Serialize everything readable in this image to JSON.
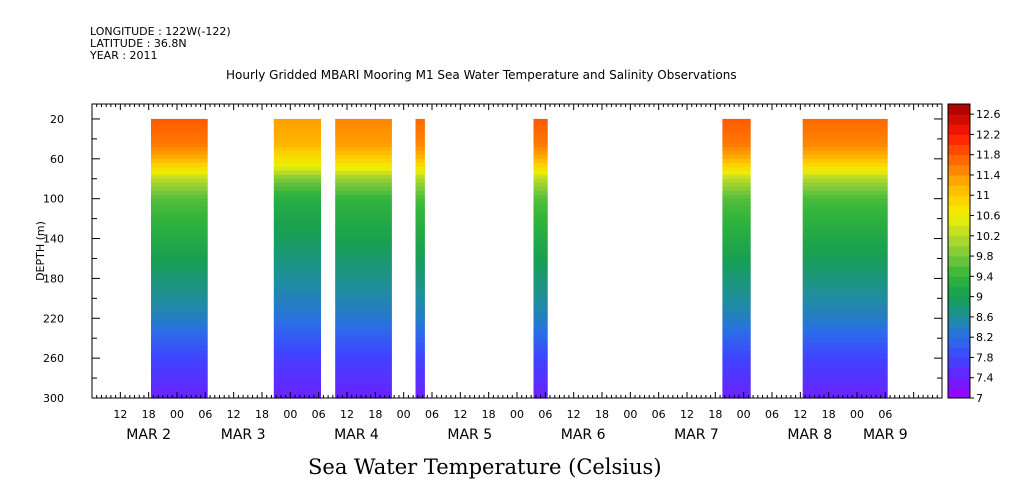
{
  "header": {
    "longitude": "LONGITUDE : 122W(-122)",
    "latitude": "LATITUDE : 36.8N",
    "year": "YEAR : 2011"
  },
  "title": "Hourly Gridded MBARI Mooring M1 Sea Water Temperature and Salinity Observations",
  "bottom_title": "Sea Water Temperature (Celsius)",
  "chart_data": {
    "type": "heatmap",
    "title": "Hourly Gridded MBARI Mooring M1 Sea Water Temperature and Salinity Observations",
    "xlabel": "",
    "ylabel": "DEPTH (m)",
    "xlim_hours": [
      0,
      180
    ],
    "ylim": [
      300,
      5
    ],
    "y_ticks": [
      20,
      60,
      100,
      140,
      180,
      220,
      260,
      300
    ],
    "y_tick_labels": [
      "20",
      "60",
      "100",
      "140",
      "180",
      "220",
      "260",
      "300"
    ],
    "x_hour_labels": [
      "12",
      "18",
      "00",
      "06",
      "12",
      "18",
      "00",
      "06",
      "12",
      "18",
      "00",
      "06",
      "12",
      "18",
      "00",
      "06",
      "12",
      "18",
      "00",
      "06",
      "12",
      "18",
      "00",
      "06",
      "12",
      "18",
      "00",
      "06"
    ],
    "x_hour_label_positions": [
      6,
      12,
      18,
      24,
      30,
      36,
      42,
      48,
      54,
      60,
      66,
      72,
      78,
      84,
      90,
      96,
      102,
      108,
      114,
      120,
      126,
      132,
      138,
      144,
      150,
      156,
      162,
      168
    ],
    "x_date_labels": [
      {
        "text": "MAR  2",
        "hour": 12
      },
      {
        "text": "MAR  3",
        "hour": 32
      },
      {
        "text": "MAR  4",
        "hour": 56
      },
      {
        "text": "MAR  5",
        "hour": 80
      },
      {
        "text": "MAR  6",
        "hour": 104
      },
      {
        "text": "MAR  7",
        "hour": 128
      },
      {
        "text": "MAR  8",
        "hour": 152
      },
      {
        "text": "MAR  9",
        "hour": 168
      }
    ],
    "colorbar": {
      "min": 7,
      "max": 12.8,
      "step": 0.2,
      "labels": [
        "12.6",
        "12.2",
        "11.8",
        "11.4",
        "11",
        "10.6",
        "10.2",
        "9.8",
        "9.4",
        "9",
        "8.6",
        "8.2",
        "7.8",
        "7.4",
        "7"
      ],
      "label_values": [
        12.6,
        12.2,
        11.8,
        11.4,
        11,
        10.6,
        10.2,
        9.8,
        9.4,
        9,
        8.6,
        8.2,
        7.8,
        7.4,
        7
      ]
    },
    "depth_profile": [
      {
        "depth": 20,
        "value": 11.8
      },
      {
        "depth": 45,
        "value": 11.6
      },
      {
        "depth": 60,
        "value": 11.2
      },
      {
        "depth": 70,
        "value": 10.8
      },
      {
        "depth": 80,
        "value": 10.2
      },
      {
        "depth": 100,
        "value": 9.6
      },
      {
        "depth": 140,
        "value": 9.2
      },
      {
        "depth": 180,
        "value": 8.8
      },
      {
        "depth": 220,
        "value": 8.4
      },
      {
        "depth": 260,
        "value": 7.8
      },
      {
        "depth": 300,
        "value": 7.4
      }
    ],
    "data_segments": [
      {
        "start_hour": 12.5,
        "end_hour": 24.5,
        "surface_offset": 0.0
      },
      {
        "start_hour": 38.5,
        "end_hour": 48.5,
        "surface_offset": -0.5
      },
      {
        "start_hour": 51.5,
        "end_hour": 63.5,
        "surface_offset": -0.3
      },
      {
        "start_hour": 68.5,
        "end_hour": 70.5,
        "surface_offset": -0.1
      },
      {
        "start_hour": 93.5,
        "end_hour": 96.5,
        "surface_offset": 0.0
      },
      {
        "start_hour": 133.5,
        "end_hour": 139.5,
        "surface_offset": 0.0
      },
      {
        "start_hour": 150.5,
        "end_hour": 168.5,
        "surface_offset": -0.1
      }
    ]
  }
}
